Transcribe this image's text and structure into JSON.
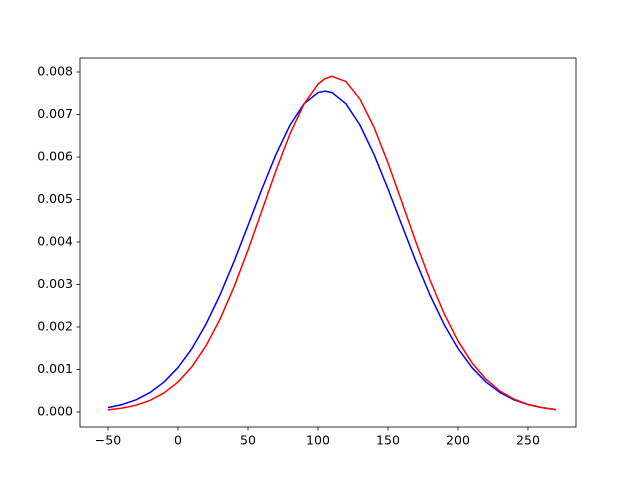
{
  "chart_data": {
    "type": "line",
    "x": [
      -50,
      -40,
      -30,
      -20,
      -10,
      0,
      10,
      20,
      30,
      40,
      50,
      60,
      70,
      80,
      90,
      100,
      105,
      110,
      120,
      130,
      140,
      150,
      160,
      170,
      180,
      190,
      200,
      210,
      220,
      230,
      240,
      250,
      260,
      270
    ],
    "series": [
      {
        "color": "#0000ff",
        "values": [
          0.000102,
          0.000174,
          0.000287,
          0.000458,
          0.000704,
          0.001046,
          0.001496,
          0.002066,
          0.002753,
          0.003539,
          0.004389,
          0.00525,
          0.006061,
          0.00675,
          0.007252,
          0.007516,
          0.00755,
          0.007516,
          0.007252,
          0.00675,
          0.006061,
          0.00525,
          0.004389,
          0.003539,
          0.002753,
          0.002066,
          0.001496,
          0.001046,
          0.000704,
          0.000458,
          0.000287,
          0.000174,
          0.000102,
          5.71e-05
        ]
      },
      {
        "color": "#ff0000",
        "values": [
          4.9e-05,
          9.05e-05,
          0.00016,
          0.000273,
          0.000448,
          0.000705,
          0.001069,
          0.001558,
          0.002183,
          0.00294,
          0.00381,
          0.004744,
          0.005682,
          0.006544,
          0.007246,
          0.007715,
          0.007844,
          0.0079,
          0.007775,
          0.00736,
          0.0067,
          0.005863,
          0.004934,
          0.003993,
          0.003106,
          0.002324,
          0.001672,
          0.001157,
          0.00077,
          0.000492,
          0.000303,
          0.000179,
          0.000102,
          5.55e-05
        ]
      }
    ],
    "xlim": [
      -70,
      284.3
    ],
    "ylim": [
      -0.000353,
      0.00833
    ],
    "xticks": [
      {
        "value": -50,
        "label": "−50"
      },
      0,
      50,
      100,
      150,
      200,
      250
    ],
    "yticks": [
      {
        "value": 0,
        "label": "0.000"
      },
      {
        "value": 0.001,
        "label": "0.001"
      },
      {
        "value": 0.002,
        "label": "0.002"
      },
      {
        "value": 0.003,
        "label": "0.003"
      },
      {
        "value": 0.004,
        "label": "0.004"
      },
      {
        "value": 0.005,
        "label": "0.005"
      },
      {
        "value": 0.006,
        "label": "0.006"
      },
      {
        "value": 0.007,
        "label": "0.007"
      },
      {
        "value": 0.008,
        "label": "0.008"
      }
    ]
  }
}
